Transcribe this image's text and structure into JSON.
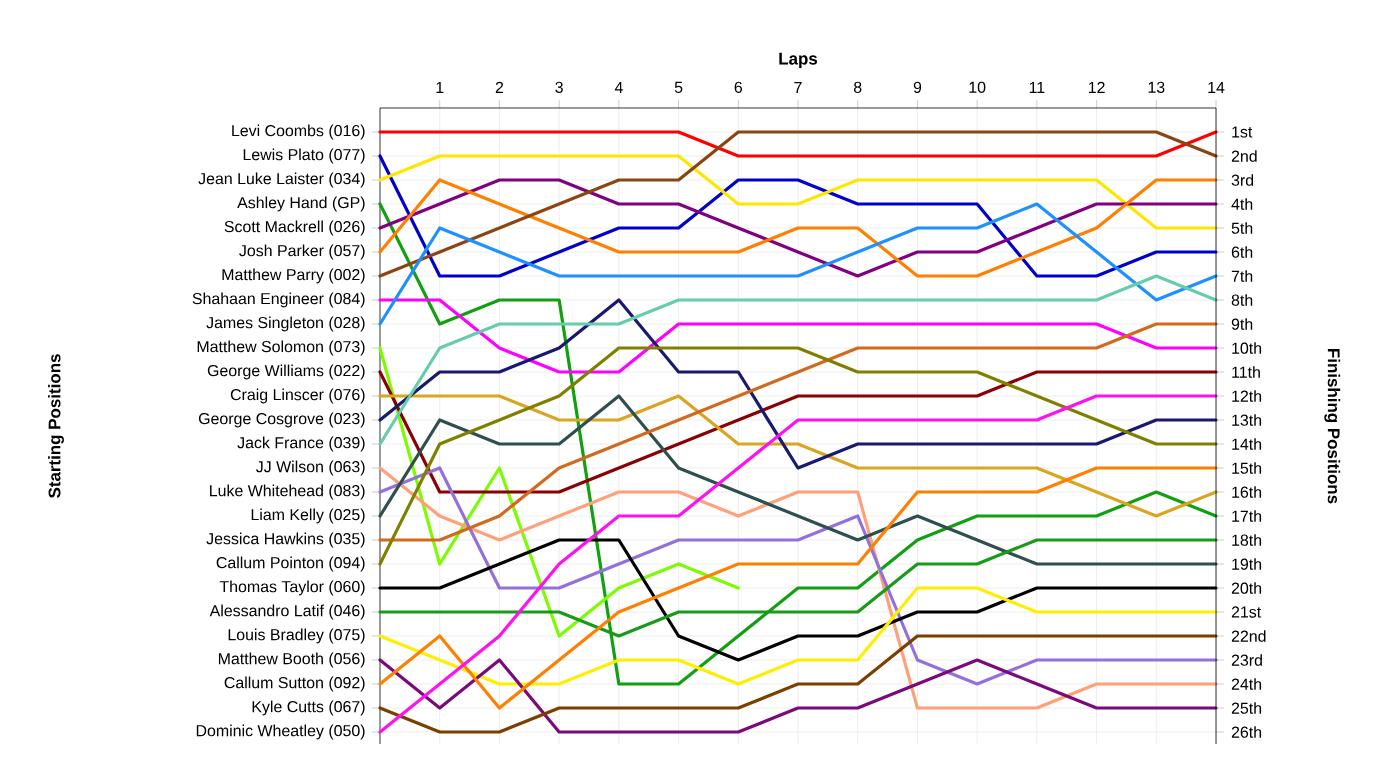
{
  "chart_data": {
    "type": "line",
    "xlabel": "Laps",
    "ylabel": "Finishing Positions",
    "annotations": [
      "Starting Positions"
    ],
    "x": [
      0,
      1,
      2,
      3,
      4,
      5,
      6,
      7,
      8,
      9,
      10,
      11,
      12,
      13,
      14
    ],
    "xlim": [
      0,
      14
    ],
    "xticks": [
      1,
      2,
      3,
      4,
      5,
      6,
      7,
      8,
      9,
      10,
      11,
      12,
      13,
      14
    ],
    "ylim": [
      26.5,
      0
    ],
    "grid": true,
    "yticks": [
      {
        "value": 1,
        "label": "1st"
      },
      {
        "value": 2,
        "label": "2nd"
      },
      {
        "value": 3,
        "label": "3rd"
      },
      {
        "value": 4,
        "label": "4th"
      },
      {
        "value": 5,
        "label": "5th"
      },
      {
        "value": 6,
        "label": "6th"
      },
      {
        "value": 7,
        "label": "7th"
      },
      {
        "value": 8,
        "label": "8th"
      },
      {
        "value": 9,
        "label": "9th"
      },
      {
        "value": 10,
        "label": "10th"
      },
      {
        "value": 11,
        "label": "11th"
      },
      {
        "value": 12,
        "label": "12th"
      },
      {
        "value": 13,
        "label": "13th"
      },
      {
        "value": 14,
        "label": "14th"
      },
      {
        "value": 15,
        "label": "15th"
      },
      {
        "value": 16,
        "label": "16th"
      },
      {
        "value": 17,
        "label": "17th"
      },
      {
        "value": 18,
        "label": "18th"
      },
      {
        "value": 19,
        "label": "19th"
      },
      {
        "value": 20,
        "label": "20th"
      },
      {
        "value": 21,
        "label": "21st"
      },
      {
        "value": 22,
        "label": "22nd"
      },
      {
        "value": 23,
        "label": "23rd"
      },
      {
        "value": 24,
        "label": "24th"
      },
      {
        "value": 25,
        "label": "25th"
      },
      {
        "value": 26,
        "label": "26th"
      }
    ],
    "series": [
      {
        "name": "Levi Coombs (016)",
        "color": "#ff0000",
        "values": [
          1,
          1,
          1,
          1,
          1,
          1,
          2,
          2,
          2,
          2,
          2,
          2,
          2,
          2,
          1
        ]
      },
      {
        "name": "Lewis Plato (077)",
        "color": "#0000cd",
        "values": [
          2,
          7,
          7,
          6,
          5,
          5,
          3,
          3,
          4,
          4,
          4,
          7,
          7,
          6,
          6
        ]
      },
      {
        "name": "Jean Luke Laister (034)",
        "color": "#ffe600",
        "values": [
          3,
          2,
          2,
          2,
          2,
          2,
          4,
          4,
          3,
          3,
          3,
          3,
          3,
          5,
          5
        ]
      },
      {
        "name": "Ashley Hand (GP)",
        "color": "#11a011",
        "values": [
          4,
          9,
          8,
          8,
          24,
          24,
          22,
          20,
          20,
          18,
          17,
          17,
          17,
          16,
          17
        ]
      },
      {
        "name": "Scott Mackrell (026)",
        "color": "#800080",
        "values": [
          5,
          4,
          3,
          3,
          4,
          4,
          5,
          6,
          7,
          6,
          6,
          5,
          4,
          4,
          4
        ]
      },
      {
        "name": "Josh Parker (057)",
        "color": "#ff7f00",
        "values": [
          6,
          3,
          4,
          5,
          6,
          6,
          6,
          5,
          5,
          7,
          7,
          6,
          5,
          3,
          3
        ]
      },
      {
        "name": "Matthew Parry (002)",
        "color": "#8b4513",
        "values": [
          7,
          6,
          5,
          4,
          3,
          3,
          1,
          1,
          1,
          1,
          1,
          1,
          1,
          1,
          2
        ]
      },
      {
        "name": "Shahaan Engineer (084)",
        "color": "#ff00ff",
        "values": [
          8,
          8,
          10,
          11,
          11,
          9,
          9,
          9,
          9,
          9,
          9,
          9,
          9,
          10,
          10
        ]
      },
      {
        "name": "James Singleton (028)",
        "color": "#1e90ff",
        "values": [
          9,
          5,
          6,
          7,
          7,
          7,
          7,
          7,
          6,
          5,
          5,
          4,
          6,
          8,
          7
        ]
      },
      {
        "name": "Matthew Solomon (073)",
        "color": "#7cfc00",
        "values": [
          10,
          19,
          15,
          22,
          20,
          19,
          20,
          null,
          null,
          null,
          null,
          null,
          null,
          null,
          null
        ]
      },
      {
        "name": "George Williams (022)",
        "color": "#8b0000",
        "values": [
          11,
          16,
          16,
          16,
          15,
          14,
          13,
          12,
          12,
          12,
          12,
          11,
          11,
          11,
          11
        ]
      },
      {
        "name": "Craig Linscer (076)",
        "color": "#daa520",
        "values": [
          12,
          12,
          12,
          13,
          13,
          12,
          14,
          14,
          15,
          15,
          15,
          15,
          16,
          17,
          16
        ]
      },
      {
        "name": "George Cosgrove (023)",
        "color": "#191970",
        "values": [
          13,
          11,
          11,
          10,
          8,
          11,
          11,
          15,
          14,
          14,
          14,
          14,
          14,
          13,
          13
        ]
      },
      {
        "name": "Jack France (039)",
        "color": "#66cdaa",
        "values": [
          14,
          10,
          9,
          9,
          9,
          8,
          8,
          8,
          8,
          8,
          8,
          8,
          8,
          7,
          8
        ]
      },
      {
        "name": "JJ Wilson (063)",
        "color": "#ffa07a",
        "values": [
          15,
          17,
          18,
          17,
          16,
          16,
          17,
          16,
          16,
          25,
          25,
          25,
          24,
          24,
          24
        ]
      },
      {
        "name": "Luke Whitehead (083)",
        "color": "#9370db",
        "values": [
          16,
          15,
          20,
          20,
          19,
          18,
          18,
          18,
          17,
          23,
          24,
          23,
          23,
          23,
          23
        ]
      },
      {
        "name": "Liam Kelly (025)",
        "color": "#2f4f4f",
        "values": [
          17,
          13,
          14,
          14,
          12,
          15,
          16,
          17,
          18,
          17,
          18,
          19,
          19,
          19,
          19
        ]
      },
      {
        "name": "Jessica Hawkins (035)",
        "color": "#d2691e",
        "values": [
          18,
          18,
          17,
          15,
          14,
          13,
          12,
          11,
          10,
          10,
          10,
          10,
          10,
          9,
          9
        ]
      },
      {
        "name": "Callum Pointon (094)",
        "color": "#808000",
        "values": [
          19,
          14,
          13,
          12,
          10,
          10,
          10,
          10,
          11,
          11,
          11,
          12,
          13,
          14,
          14
        ]
      },
      {
        "name": "Thomas Taylor (060)",
        "color": "#000000",
        "values": [
          20,
          20,
          19,
          18,
          18,
          22,
          23,
          22,
          22,
          21,
          21,
          20,
          20,
          20,
          20
        ]
      },
      {
        "name": "Alessandro Latif (046)",
        "color": "#1a9a1a",
        "values": [
          21,
          21,
          21,
          21,
          22,
          21,
          21,
          21,
          21,
          19,
          19,
          18,
          18,
          18,
          18
        ]
      },
      {
        "name": "Louis Bradley (075)",
        "color": "#ffee00",
        "values": [
          22,
          23,
          24,
          24,
          23,
          23,
          24,
          23,
          23,
          20,
          20,
          21,
          21,
          21,
          21
        ]
      },
      {
        "name": "Matthew Booth (056)",
        "color": "#7a0a7a",
        "values": [
          23,
          25,
          23,
          26,
          26,
          26,
          26,
          25,
          25,
          24,
          23,
          24,
          25,
          25,
          25
        ]
      },
      {
        "name": "Callum Sutton (092)",
        "color": "#ff8000",
        "values": [
          24,
          22,
          25,
          23,
          21,
          20,
          19,
          19,
          19,
          16,
          16,
          16,
          15,
          15,
          15
        ]
      },
      {
        "name": "Kyle Cutts (067)",
        "color": "#7b3f00",
        "values": [
          25,
          26,
          26,
          25,
          25,
          25,
          25,
          24,
          24,
          22,
          22,
          22,
          22,
          22,
          22
        ]
      },
      {
        "name": "Dominic Wheatley (050)",
        "color": "#ff10f0",
        "values": [
          26,
          24,
          22,
          19,
          17,
          17,
          15,
          13,
          13,
          13,
          13,
          13,
          12,
          12,
          12
        ]
      }
    ]
  }
}
